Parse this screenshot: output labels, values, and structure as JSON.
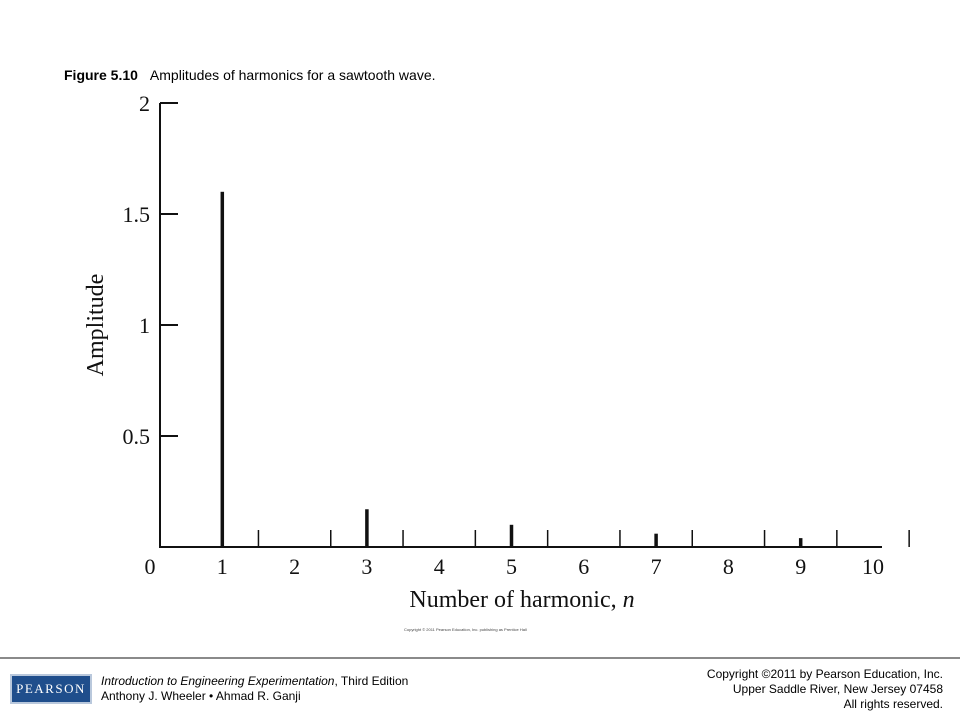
{
  "caption": {
    "figure_number": "Figure 5.10",
    "text": "Amplitudes of harmonics for a sawtooth wave."
  },
  "chart_data": {
    "type": "bar",
    "xlabel_prefix": "Number of harmonic, ",
    "xlabel_var": "n",
    "ylabel": "Amplitude",
    "xlim": [
      0,
      10
    ],
    "ylim": [
      0,
      2
    ],
    "x_ticks": [
      "0",
      "1",
      "2",
      "3",
      "4",
      "5",
      "6",
      "7",
      "8",
      "9",
      "10"
    ],
    "y_ticks": [
      {
        "label": "0.5",
        "value": 0.5
      },
      {
        "label": "1",
        "value": 1
      },
      {
        "label": "1.5",
        "value": 1.5
      },
      {
        "label": "2",
        "value": 2
      }
    ],
    "x_minor_ticks": [
      1.5,
      2.5,
      3.5,
      4.5,
      5.5,
      6.5,
      7.5,
      8.5,
      9.5,
      10.5
    ],
    "bars": [
      {
        "n": 1,
        "value": 1.6
      },
      {
        "n": 3,
        "value": 0.17
      },
      {
        "n": 5,
        "value": 0.1
      },
      {
        "n": 7,
        "value": 0.06
      },
      {
        "n": 9,
        "value": 0.04
      }
    ],
    "grid": false,
    "legend": "none"
  },
  "credit": "Copyright © 2011 Pearson Education, Inc. publishing as Prentice Hall",
  "footer": {
    "logo_text": "PEARSON",
    "book_title": "Introduction to Engineering Experimentation",
    "book_edition": ", Third Edition",
    "authors": "Anthony J. Wheeler • Ahmad R. Ganji",
    "copyright_line1": "Copyright ©2011 by Pearson Education, Inc.",
    "copyright_line2": "Upper Saddle River, New Jersey 07458",
    "copyright_line3": "All rights reserved."
  }
}
